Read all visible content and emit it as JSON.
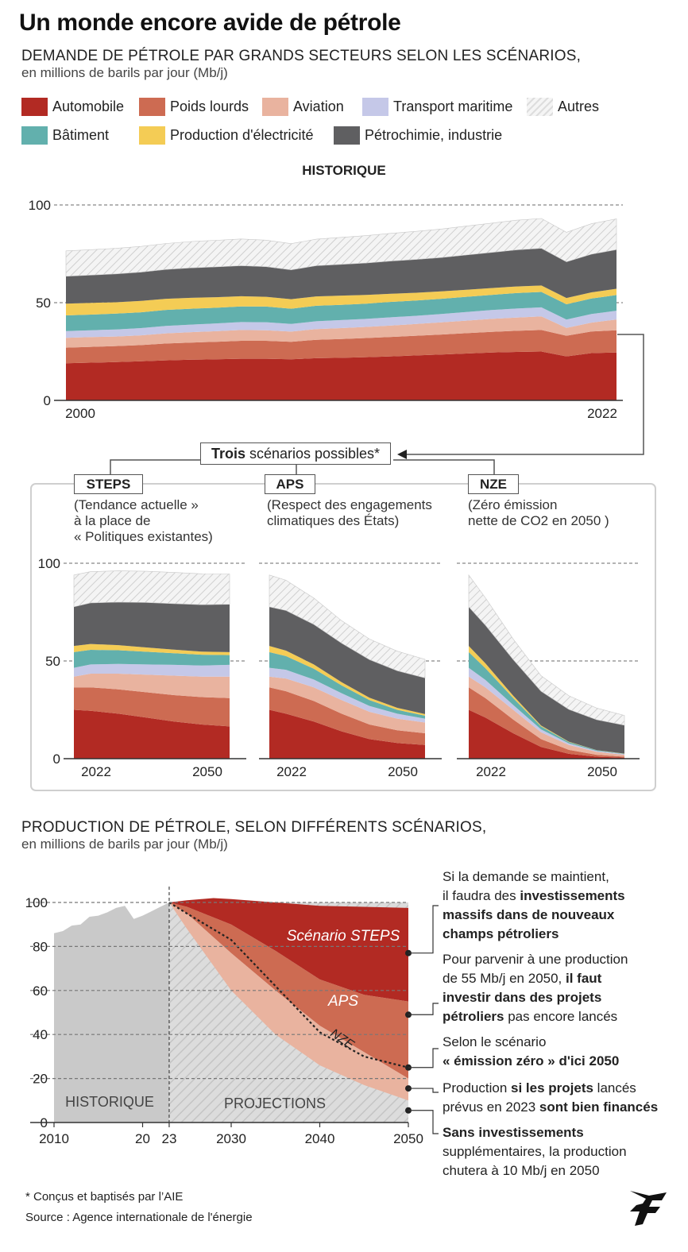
{
  "title": "Un monde encore avide de pétrole",
  "demand": {
    "heading": "DEMANDE DE PÉTROLE PAR GRANDS SECTEURS SELON LES SCÉNARIOS,",
    "subheading": "en millions de barils par jour (Mb/j)",
    "historique_label": "HISTORIQUE",
    "trois_bold": "Trois",
    "trois_rest": " scénarios possibles*",
    "scenarios": [
      {
        "name": "STEPS",
        "note1": "(Tendance actuelle »",
        "note2": "à la place de",
        "note3": "« Politiques existantes)"
      },
      {
        "name": "APS",
        "note1": "(Respect des engagements",
        "note2": "climatiques des États)",
        "note3": ""
      },
      {
        "name": "NZE",
        "note1": "(Zéro émission",
        "note2": "nette de CO2 en 2050 )",
        "note3": ""
      }
    ]
  },
  "legend": [
    {
      "label": "Automobile",
      "color": "#b22a23"
    },
    {
      "label": "Poids lourds",
      "color": "#cd6b52"
    },
    {
      "label": "Aviation",
      "color": "#e9b39f"
    },
    {
      "label": "Transport maritime",
      "color": "#c5c8e8"
    },
    {
      "label": "Autres",
      "color": "hatch"
    },
    {
      "label": "Bâtiment",
      "color": "#62b0ad"
    },
    {
      "label": "Production d'électricité",
      "color": "#f4cc55"
    },
    {
      "label": "Pétrochimie, industrie",
      "color": "#5f5f61"
    }
  ],
  "production": {
    "heading": "PRODUCTION DE PÉTROLE, SELON DIFFÉRENTS SCÉNARIOS,",
    "subheading": "en millions de barils par jour (Mb/j)",
    "labels": {
      "steps": "Scénario STEPS",
      "aps": "APS",
      "nze": "NZE",
      "historique": "HISTORIQUE",
      "projections": "PROJECTIONS"
    },
    "annotations": [
      [
        "Si la demande se maintient,",
        "il faudra des <b>investissements</b>",
        "<b>massifs dans de nouveaux</b>",
        "<b>champs pétroliers</b>"
      ],
      [
        "Pour parvenir à une production",
        "de 55 Mb/j en 2050, <b>il faut</b>",
        "<b>investir dans des projets</b>",
        "<b>pétroliers</b> pas encore lancés"
      ],
      [
        "Selon le scénario",
        "<b>« émission zéro » d'ici 2050</b>"
      ],
      [
        "Production <b>si les projets</b> lancés",
        "prévus en 2023 <b>sont bien financés</b>"
      ],
      [
        "<b>Sans investissements</b>",
        "supplémentaires, la production",
        "chutera à 10 Mb/j en 2050"
      ]
    ]
  },
  "footnote": "* Conçus et baptisés par l’AIE",
  "source": "Source : Agence internationale de l'énergie",
  "chart_data": [
    {
      "type": "area",
      "title": "HISTORIQUE",
      "stacked": true,
      "x": [
        2000,
        2001,
        2002,
        2003,
        2004,
        2005,
        2006,
        2007,
        2008,
        2009,
        2010,
        2011,
        2012,
        2013,
        2014,
        2015,
        2016,
        2017,
        2018,
        2019,
        2020,
        2021,
        2022
      ],
      "x_ticks": [
        "2000",
        "2022"
      ],
      "y_ticks": [
        0,
        50,
        100
      ],
      "ylim": [
        0,
        100
      ],
      "series": [
        {
          "name": "Automobile",
          "values": [
            19,
            19.3,
            19.6,
            20,
            20.5,
            20.8,
            21,
            21.3,
            21.3,
            21,
            21.6,
            21.8,
            22.1,
            22.5,
            23,
            23.5,
            24,
            24.5,
            24.8,
            25,
            22.5,
            24.2,
            24.5
          ]
        },
        {
          "name": "Poids lourds",
          "values": [
            8,
            8.1,
            8.2,
            8.3,
            8.6,
            8.8,
            9,
            9.2,
            9.2,
            9,
            9.4,
            9.6,
            9.8,
            10,
            10.1,
            10.2,
            10.4,
            10.6,
            10.8,
            11,
            10.6,
            11.1,
            11.4
          ]
        },
        {
          "name": "Aviation",
          "values": [
            5,
            5,
            4.9,
            5,
            5.2,
            5.3,
            5.4,
            5.5,
            5.4,
            5.2,
            5.5,
            5.6,
            5.7,
            5.8,
            6,
            6.2,
            6.4,
            6.6,
            6.8,
            7,
            4,
            4.5,
            5.5
          ]
        },
        {
          "name": "Transport maritime",
          "values": [
            3.5,
            3.5,
            3.6,
            3.7,
            3.8,
            3.9,
            4,
            4.1,
            4.1,
            3.9,
            4,
            4.1,
            4.1,
            4.2,
            4.2,
            4.3,
            4.4,
            4.5,
            4.6,
            4.6,
            4.3,
            4.4,
            4.5
          ]
        },
        {
          "name": "Bâtiment",
          "values": [
            8,
            8,
            8.1,
            8.1,
            8.2,
            8.1,
            8,
            8,
            8,
            7.8,
            7.9,
            7.8,
            7.8,
            7.9,
            7.8,
            7.8,
            7.8,
            7.8,
            7.9,
            7.9,
            7.8,
            7.9,
            8
          ]
        },
        {
          "name": "Production d'électricité",
          "values": [
            6,
            6,
            5.8,
            5.8,
            5.7,
            5.6,
            5.4,
            5.2,
            5,
            4.9,
            4.8,
            4.7,
            4.5,
            4.2,
            4,
            3.8,
            3.6,
            3.5,
            3.4,
            3.3,
            3.2,
            3.2,
            3.2
          ]
        },
        {
          "name": "Pétrochimie, industrie",
          "values": [
            14,
            14.2,
            14.5,
            14.7,
            15,
            15.3,
            15.5,
            15.6,
            15.4,
            15,
            15.7,
            16,
            16.3,
            16.7,
            17,
            17.3,
            17.8,
            18.2,
            18.7,
            19,
            18.5,
            19.5,
            20
          ]
        },
        {
          "name": "Autres",
          "values": [
            13,
            13,
            13.1,
            13.2,
            13.3,
            13.5,
            13.6,
            13.7,
            13.6,
            13.4,
            13.6,
            13.8,
            14,
            14.2,
            14.4,
            14.6,
            14.8,
            15,
            15.2,
            15.3,
            15.1,
            15.6,
            15.8
          ]
        }
      ]
    },
    {
      "type": "area",
      "title": "STEPS",
      "stacked": true,
      "x": [
        2022,
        2025,
        2030,
        2035,
        2040,
        2045,
        2050
      ],
      "x_ticks": [
        "2022",
        "2050"
      ],
      "y_ticks": [
        0,
        50,
        100
      ],
      "ylim": [
        0,
        100
      ],
      "series": [
        {
          "name": "Automobile",
          "values": [
            25,
            24.5,
            23,
            21,
            19,
            17.5,
            16.5
          ]
        },
        {
          "name": "Poids lourds",
          "values": [
            11.5,
            12,
            12.5,
            13,
            13.5,
            14,
            14.5
          ]
        },
        {
          "name": "Aviation",
          "values": [
            5.5,
            7,
            8,
            9,
            10,
            10.5,
            11
          ]
        },
        {
          "name": "Transport maritime",
          "values": [
            4.5,
            4.7,
            5,
            5.2,
            5.5,
            5.7,
            6
          ]
        },
        {
          "name": "Bâtiment",
          "values": [
            8,
            7.5,
            7,
            6.5,
            6,
            5.5,
            5
          ]
        },
        {
          "name": "Production d'électricité",
          "values": [
            3.2,
            3,
            2.6,
            2.2,
            1.8,
            1.6,
            1.5
          ]
        },
        {
          "name": "Pétrochimie, industrie",
          "values": [
            20,
            21,
            22,
            23,
            23.5,
            24,
            24.5
          ]
        },
        {
          "name": "Autres",
          "values": [
            16.3,
            16,
            16,
            16,
            16,
            15.8,
            15.5
          ]
        }
      ]
    },
    {
      "type": "area",
      "title": "APS",
      "stacked": true,
      "x": [
        2022,
        2025,
        2030,
        2035,
        2040,
        2045,
        2050
      ],
      "x_ticks": [
        "2022",
        "2050"
      ],
      "y_ticks": [
        0,
        50,
        100
      ],
      "ylim": [
        0,
        100
      ],
      "series": [
        {
          "name": "Automobile",
          "values": [
            25,
            23,
            19,
            14,
            10,
            8,
            7
          ]
        },
        {
          "name": "Poids lourds",
          "values": [
            11.5,
            11.5,
            10.5,
            9,
            7.5,
            6.5,
            6
          ]
        },
        {
          "name": "Aviation",
          "values": [
            5.5,
            6.5,
            7,
            7,
            6.5,
            6,
            5.5
          ]
        },
        {
          "name": "Transport maritime",
          "values": [
            4.5,
            4.5,
            4,
            3.5,
            3,
            2.5,
            2
          ]
        },
        {
          "name": "Bâtiment",
          "values": [
            8,
            7,
            5.5,
            4,
            3,
            2,
            1.5
          ]
        },
        {
          "name": "Production d'électricité",
          "values": [
            3.2,
            2.8,
            2.2,
            1.6,
            1.2,
            1,
            0.8
          ]
        },
        {
          "name": "Pétrochimie, industrie",
          "values": [
            20,
            20.5,
            20.5,
            20,
            19.5,
            19,
            18.5
          ]
        },
        {
          "name": "Autres",
          "values": [
            16.3,
            15.5,
            13.5,
            11.5,
            10.5,
            10,
            9.5
          ]
        }
      ]
    },
    {
      "type": "area",
      "title": "NZE",
      "stacked": true,
      "x": [
        2022,
        2025,
        2030,
        2035,
        2040,
        2045,
        2050
      ],
      "x_ticks": [
        "2022",
        "2050"
      ],
      "y_ticks": [
        0,
        50,
        100
      ],
      "ylim": [
        0,
        100
      ],
      "series": [
        {
          "name": "Automobile",
          "values": [
            25,
            21,
            13,
            6,
            2.5,
            1,
            0.5
          ]
        },
        {
          "name": "Poids lourds",
          "values": [
            11.5,
            10,
            7,
            4,
            2,
            1,
            0.5
          ]
        },
        {
          "name": "Aviation",
          "values": [
            5.5,
            5.5,
            5,
            3.5,
            2.5,
            1.5,
            1
          ]
        },
        {
          "name": "Transport maritime",
          "values": [
            4.5,
            3.8,
            2.5,
            1.5,
            0.8,
            0.5,
            0.3
          ]
        },
        {
          "name": "Bâtiment",
          "values": [
            8,
            6,
            3.5,
            1.5,
            0.7,
            0.3,
            0.2
          ]
        },
        {
          "name": "Production d'électricité",
          "values": [
            3.2,
            2.5,
            1.2,
            0.5,
            0.2,
            0.1,
            0.1
          ]
        },
        {
          "name": "Pétrochimie, industrie",
          "values": [
            20,
            19.5,
            18.5,
            17.5,
            16.5,
            15.5,
            14.5
          ]
        },
        {
          "name": "Autres",
          "values": [
            16.3,
            14,
            10.5,
            8,
            7,
            6,
            5
          ]
        }
      ]
    },
    {
      "type": "area",
      "title": "PRODUCTION DE PÉTROLE, SELON DIFFÉRENTS SCÉNARIOS,",
      "x_ticks": [
        "2010",
        "20",
        "23",
        "2030",
        "2040",
        "2050"
      ],
      "y_ticks": [
        0,
        20,
        40,
        60,
        80,
        100
      ],
      "ylim": [
        0,
        100
      ],
      "xlim": [
        2010,
        2050
      ],
      "series": [
        {
          "name": "HISTORIQUE",
          "x": [
            2010,
            2011,
            2012,
            2013,
            2014,
            2015,
            2016,
            2017,
            2018,
            2019,
            2020,
            2021,
            2022,
            2023
          ],
          "values": [
            86,
            87,
            89.5,
            90,
            93.5,
            94,
            95.5,
            97.5,
            98.5,
            92.5,
            94,
            96,
            98,
            100
          ]
        },
        {
          "name": "Scénario STEPS",
          "x": [
            2023,
            2025,
            2028,
            2030,
            2035,
            2040,
            2045,
            2050
          ],
          "values": [
            100,
            101,
            102,
            101.5,
            100,
            98.5,
            98,
            97.5
          ]
        },
        {
          "name": "APS",
          "x": [
            2023,
            2025,
            2030,
            2035,
            2040,
            2045,
            2050
          ],
          "values": [
            100,
            98,
            90,
            78,
            65,
            58,
            55
          ]
        },
        {
          "name": "NZE",
          "x": [
            2023,
            2025,
            2030,
            2035,
            2040,
            2045,
            2050
          ],
          "values": [
            100,
            95,
            83,
            62,
            41,
            30,
            25
          ]
        },
        {
          "name": "Projets lancés",
          "x": [
            2023,
            2025,
            2030,
            2035,
            2040,
            2045,
            2050
          ],
          "values": [
            100,
            95,
            77,
            60,
            44,
            32,
            20
          ]
        },
        {
          "name": "Sans investissements",
          "x": [
            2023,
            2025,
            2030,
            2035,
            2040,
            2045,
            2050
          ],
          "values": [
            100,
            88,
            60,
            40,
            26,
            17,
            10
          ]
        }
      ]
    }
  ]
}
